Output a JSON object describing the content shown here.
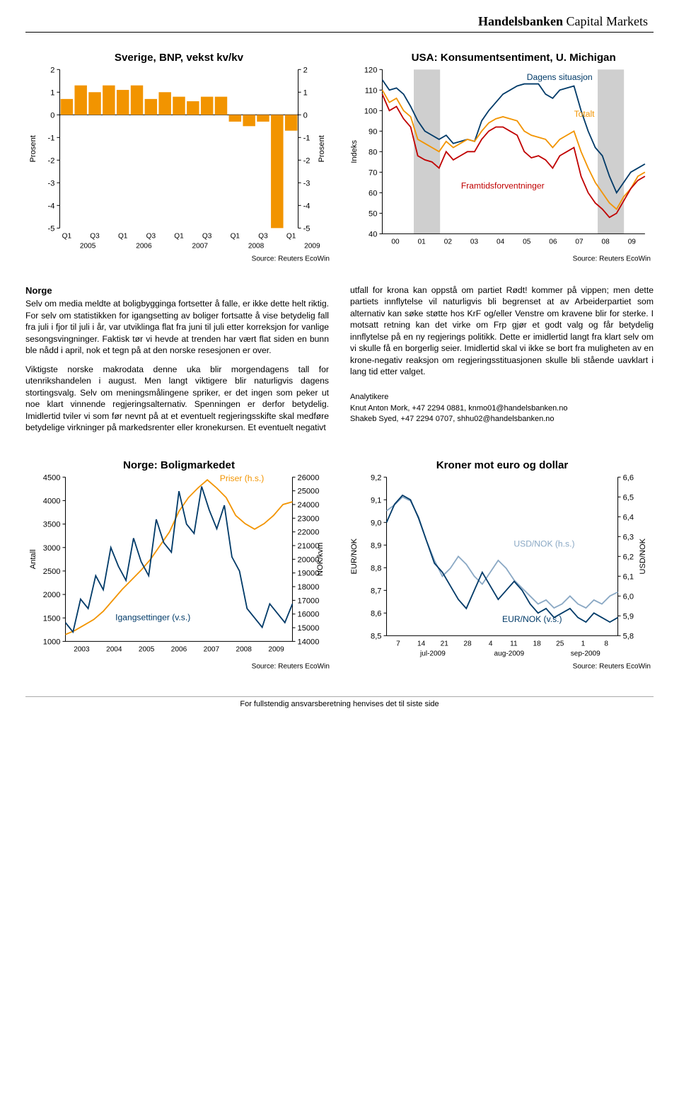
{
  "brand": {
    "bold": "Handelsbanken",
    "light": " Capital Markets"
  },
  "chart1": {
    "title": "Sverige, BNP, vekst kv/kv",
    "source": "Source: Reuters EcoWin",
    "ylabel_left": "Prosent",
    "ylabel_right": "Prosent",
    "yticks": [
      2,
      1,
      0,
      -1,
      -2,
      -3,
      -4,
      -5
    ],
    "xticks": [
      "Q1",
      "Q3",
      "Q1",
      "Q3",
      "Q1",
      "Q3",
      "Q1",
      "Q3",
      "Q1"
    ],
    "xtick_years": [
      "2005",
      "2006",
      "2007",
      "2008",
      "2009"
    ],
    "bar_color": "#f29400",
    "axis_color": "#000",
    "values": [
      0.7,
      1.3,
      1.0,
      1.3,
      1.1,
      1.3,
      0.7,
      1.0,
      0.8,
      0.6,
      0.8,
      0.8,
      -0.3,
      -0.5,
      -0.3,
      -5.0,
      -0.7
    ]
  },
  "chart2": {
    "title": "USA: Konsumentsentiment, U. Michigan",
    "source": "Source: Reuters EcoWin",
    "ylabel": "Indeks",
    "yticks": [
      120,
      110,
      100,
      90,
      80,
      70,
      60,
      50,
      40
    ],
    "xticks": [
      "00",
      "01",
      "02",
      "03",
      "04",
      "05",
      "06",
      "07",
      "08",
      "09"
    ],
    "label_dagens": "Dagens situasjon",
    "label_totalt": "Totalt",
    "label_framtid": "Framtidsforventninger",
    "shade_color": "#cfcfcf",
    "line_dark": "#003a68",
    "line_orange": "#f29400",
    "line_red": "#c00000",
    "shades": [
      [
        0.12,
        0.22
      ],
      [
        0.82,
        0.92
      ]
    ],
    "series_dark": [
      115,
      110,
      111,
      108,
      102,
      95,
      90,
      88,
      86,
      88,
      84,
      85,
      86,
      85,
      95,
      100,
      104,
      108,
      110,
      112,
      113,
      113,
      113,
      108,
      106,
      110,
      111,
      112,
      100,
      90,
      82,
      78,
      68,
      60,
      65,
      70,
      72,
      74
    ],
    "series_orange": [
      110,
      104,
      106,
      100,
      97,
      86,
      84,
      82,
      80,
      85,
      82,
      84,
      86,
      85,
      90,
      94,
      96,
      97,
      96,
      95,
      90,
      88,
      87,
      86,
      82,
      86,
      88,
      90,
      80,
      72,
      65,
      60,
      55,
      52,
      58,
      62,
      68,
      70
    ],
    "series_red": [
      108,
      100,
      102,
      96,
      92,
      78,
      76,
      75,
      72,
      80,
      76,
      78,
      80,
      80,
      86,
      90,
      92,
      92,
      90,
      88,
      80,
      77,
      78,
      76,
      72,
      78,
      80,
      82,
      68,
      60,
      55,
      52,
      48,
      50,
      56,
      62,
      66,
      68
    ]
  },
  "section_title": "Norge",
  "para1a": "Selv om media meldte at boligbygginga fortsetter å falle, er ikke dette helt riktig. For selv om statistikken for igangsetting av boliger fortsatte å vise betydelig fall fra juli i fjor til juli i år, var utviklinga flat fra juni til juli etter korreksjon for vanlige sesongsvingninger. Faktisk tør vi hevde at trenden har vært flat siden en bunn ble nådd i april, nok et tegn på at den norske resesjonen er over.",
  "para1b": "Viktigste norske makrodata denne uka blir morgendagens tall for utenrikshandelen i august. Men langt viktigere blir naturligvis dagens stortingsvalg. Selv om meningsmålingene spriker, er det ingen som peker ut noe klart vinnende regjeringsalternativ. Spenningen er derfor betydelig. Imidlertid tviler vi som før nevnt på at et eventuelt regjeringsskifte skal medføre betydelige virkninger på markedsrenter eller kronekursen. Et eventuelt negativt",
  "para2": "utfall for krona kan oppstå om partiet Rødt! kommer på vippen; men dette partiets innflytelse vil naturligvis bli begrenset at av Arbeiderpartiet som alternativ kan søke støtte hos KrF og/eller Venstre om kravene blir for sterke. I motsatt retning kan det virke om Frp gjør et godt valg og får betydelig innflytelse på en ny regjerings politikk. Dette er imidlertid langt fra klart selv om vi skulle få en borgerlig seier. Imidlertid skal vi ikke se bort fra muligheten av en krone-negativ reaksjon om regjeringsstituasjonen skulle bli stående uavklart i lang tid etter valget.",
  "analytikere_head": "Analytikere",
  "analyst1": "Knut Anton Mork, +47 2294 0881, knmo01@handelsbanken.no",
  "analyst2": "Shakeb Syed, +47 2294 0707, shhu02@handelsbanken.no",
  "chart3": {
    "title": "Norge: Boligmarkedet",
    "source": "Source: Reuters EcoWin",
    "ylabel_left": "Antall",
    "ylabel_right": "NOK/kvm",
    "yticks_left": [
      4500,
      4000,
      3500,
      3000,
      2500,
      2000,
      1500,
      1000
    ],
    "yticks_right": [
      26000,
      25000,
      24000,
      23000,
      22000,
      21000,
      20000,
      19000,
      18000,
      17000,
      16000,
      15000,
      14000
    ],
    "xticks": [
      "2003",
      "2004",
      "2005",
      "2006",
      "2007",
      "2008",
      "2009"
    ],
    "label_priser": "Priser (h.s.)",
    "label_igang": "Igangsettinger (v.s.)",
    "line_dark": "#003a68",
    "line_orange": "#f29400",
    "series_orange": [
      14500,
      14800,
      15200,
      15600,
      16200,
      17000,
      17800,
      18500,
      19200,
      20000,
      21000,
      22000,
      23500,
      24500,
      25200,
      25800,
      25200,
      24500,
      23200,
      22600,
      22200,
      22600,
      23200,
      24000,
      24200
    ],
    "series_dark": [
      1400,
      1200,
      1900,
      1700,
      2400,
      2100,
      3000,
      2600,
      2300,
      3200,
      2700,
      2400,
      3600,
      3100,
      2900,
      4200,
      3500,
      3300,
      4300,
      3800,
      3400,
      3900,
      2800,
      2500,
      1700,
      1500,
      1300,
      1800,
      1600,
      1400,
      1800
    ]
  },
  "chart4": {
    "title": "Kroner mot euro og dollar",
    "source": "Source: Reuters EcoWin",
    "ylabel_left": "EUR/NOK",
    "ylabel_right": "USD/NOK",
    "yticks_left": [
      "9,2",
      "9,1",
      "9,0",
      "8,9",
      "8,8",
      "8,7",
      "8,6",
      "8,5"
    ],
    "yticks_right": [
      "6,6",
      "6,5",
      "6,4",
      "6,3",
      "6,2",
      "6,1",
      "6,0",
      "5,9",
      "5,8"
    ],
    "xticks": [
      "7",
      "14",
      "21",
      "28",
      "4",
      "11",
      "18",
      "25",
      "1",
      "8"
    ],
    "xtick_months": [
      "jul-2009",
      "aug-2009",
      "sep-2009"
    ],
    "label_usd": "USD/NOK (h.s.)",
    "label_eur": "EUR/NOK (v.s.)",
    "line_dark": "#003a68",
    "line_light": "#8aa8c4",
    "series_eur": [
      9.0,
      9.08,
      9.12,
      9.1,
      9.02,
      8.92,
      8.82,
      8.78,
      8.72,
      8.66,
      8.62,
      8.7,
      8.78,
      8.72,
      8.66,
      8.7,
      8.74,
      8.7,
      8.64,
      8.6,
      8.62,
      8.58,
      8.6,
      8.62,
      8.58,
      8.56,
      8.6,
      8.58,
      8.56,
      8.58
    ],
    "series_usd": [
      6.43,
      6.46,
      6.5,
      6.48,
      6.4,
      6.28,
      6.18,
      6.1,
      6.14,
      6.2,
      6.16,
      6.1,
      6.06,
      6.12,
      6.18,
      6.14,
      6.08,
      6.04,
      6.0,
      5.96,
      5.98,
      5.94,
      5.96,
      6.0,
      5.96,
      5.94,
      5.98,
      5.96,
      6.0,
      6.02
    ]
  },
  "footer": "For fullstendig ansvarsberetning henvises det til siste side"
}
